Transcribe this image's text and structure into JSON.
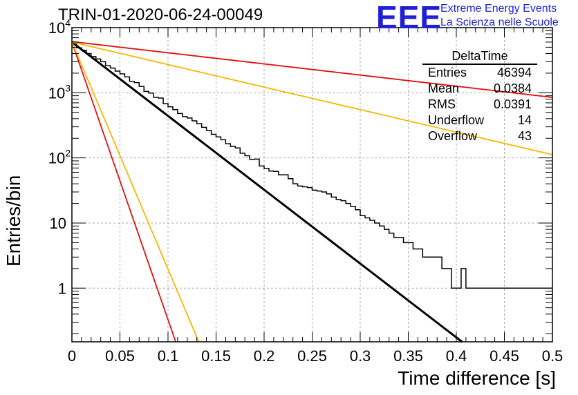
{
  "header": {
    "title": "TRIN-01-2020-06-24-00049",
    "logo_text": "EEE",
    "logo_line1": "Extreme Energy Events",
    "logo_line2": "La Scienza nelle Scuole"
  },
  "stats_box": {
    "title": "DeltaTime",
    "rows": [
      {
        "label": "Entries",
        "value": "46394"
      },
      {
        "label": "Mean",
        "value": "0.0384"
      },
      {
        "label": "RMS",
        "value": "0.0391"
      },
      {
        "label": "Underflow",
        "value": "14"
      },
      {
        "label": "Overflow",
        "value": "43"
      }
    ]
  },
  "colors": {
    "histogram": "#000000",
    "fit": "#000000",
    "red_lines": "#e01010",
    "orange_lines": "#f5b800",
    "grid": "#aaaaaa"
  },
  "chart_data": {
    "type": "line",
    "xlabel": "Time difference [s]",
    "ylabel": "Entries/bin",
    "xlim": [
      0,
      0.5
    ],
    "ylim": [
      0.15,
      10000
    ],
    "yscale": "log",
    "grid": true,
    "x_ticks": [
      "0",
      "0.05",
      "0.1",
      "0.15",
      "0.2",
      "0.25",
      "0.3",
      "0.35",
      "0.4",
      "0.45",
      "0.5"
    ],
    "y_ticks": [
      {
        "value": 1,
        "label": "1"
      },
      {
        "value": 10,
        "label": "10"
      },
      {
        "value": 100,
        "label": "10^2"
      },
      {
        "value": 1000,
        "label": "10^3"
      },
      {
        "value": 10000,
        "label": "10^4"
      }
    ],
    "histogram": {
      "bin_width": 0.005,
      "values": [
        5800,
        4900,
        4500,
        4000,
        3600,
        3300,
        3000,
        2600,
        2400,
        2150,
        1950,
        1750,
        1500,
        1430,
        1250,
        1050,
        990,
        850,
        830,
        680,
        610,
        550,
        480,
        430,
        410,
        370,
        335,
        295,
        265,
        230,
        210,
        190,
        165,
        150,
        142,
        118,
        108,
        95,
        96,
        75,
        69,
        63,
        62,
        55,
        55,
        48,
        40,
        37,
        36,
        35,
        32,
        31,
        30,
        28,
        25,
        23,
        22,
        20,
        18,
        16,
        13,
        12,
        11,
        10,
        9,
        8,
        7,
        6,
        6,
        5,
        5,
        4,
        4,
        3,
        3,
        3,
        3,
        2,
        2,
        1,
        1,
        2,
        1,
        1,
        1,
        1,
        1,
        1,
        1,
        1,
        1,
        1,
        1,
        1,
        1,
        1,
        1,
        1,
        1,
        1
      ]
    },
    "series": [
      {
        "x": [
          0,
          0.406
        ],
        "y": [
          6000,
          0.15
        ]
      },
      {
        "x": [
          0,
          0.5
        ],
        "y": [
          6100,
          850
        ]
      },
      {
        "x": [
          0,
          0.5
        ],
        "y": [
          6000,
          112
        ]
      },
      {
        "x": [
          0,
          0.108
        ],
        "y": [
          6000,
          0.15
        ]
      },
      {
        "x": [
          0,
          0.132
        ],
        "y": [
          6000,
          0.15
        ]
      }
    ]
  }
}
